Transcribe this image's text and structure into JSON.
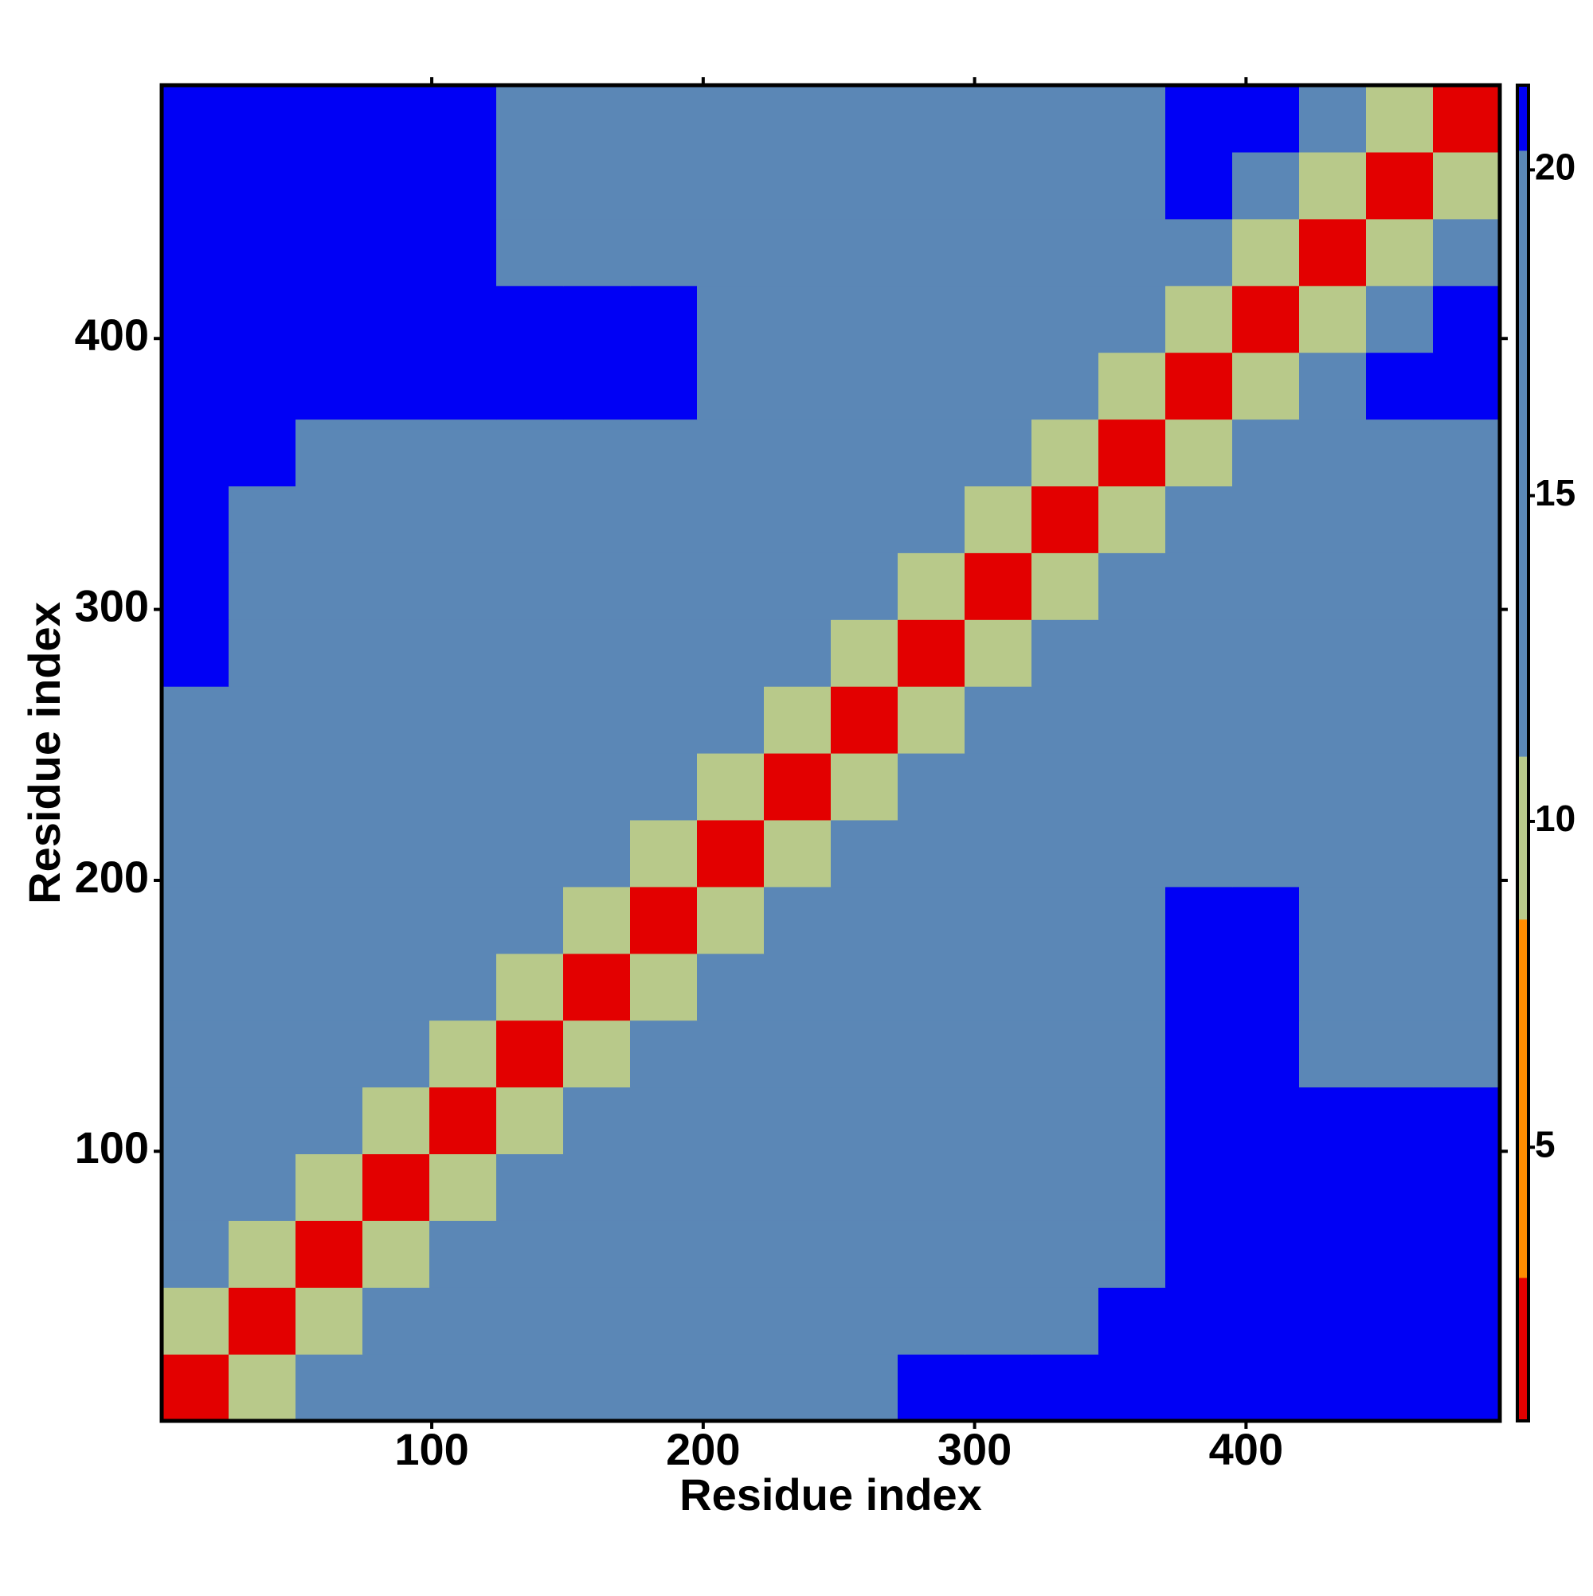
{
  "chart_data": {
    "type": "heatmap",
    "x_label": "Residue index",
    "y_label": "Residue index",
    "xlim": [
      0.5,
      493.5
    ],
    "ylim": [
      0.5,
      493.5
    ],
    "xticks": [
      100,
      200,
      300,
      400
    ],
    "yticks": [
      100,
      200,
      300,
      400
    ],
    "bins": [
      0.5,
      25.15,
      49.8,
      74.45,
      99.1,
      123.75,
      148.4,
      173.05,
      197.7,
      222.35,
      247,
      271.65,
      296.3,
      320.95,
      345.6,
      370.25,
      394.9,
      419.55,
      444.2,
      468.85,
      493.5
    ],
    "values": [
      [
        3,
        9,
        16,
        16,
        16,
        16,
        17,
        18,
        19,
        20,
        20,
        21,
        21,
        21,
        21,
        21,
        21,
        21,
        21,
        21
      ],
      [
        9,
        3,
        9,
        16,
        16,
        16,
        16,
        16,
        16,
        17,
        18,
        19,
        20,
        20,
        21,
        21,
        21,
        21,
        21,
        21
      ],
      [
        16,
        9,
        3,
        9,
        16,
        16,
        16,
        16,
        16,
        16,
        16,
        17,
        18,
        19,
        20,
        21,
        21,
        21,
        21,
        21
      ],
      [
        16,
        16,
        9,
        3,
        9,
        16,
        16,
        16,
        16,
        16,
        16,
        16,
        17,
        17,
        19,
        21,
        21,
        21,
        21,
        21
      ],
      [
        16,
        16,
        16,
        9,
        3,
        9,
        16,
        16,
        16,
        16,
        16,
        16,
        16,
        17,
        19,
        21,
        21,
        21,
        21,
        21
      ],
      [
        16,
        16,
        16,
        16,
        9,
        3,
        9,
        16,
        16,
        16,
        16,
        16,
        16,
        17,
        19,
        21,
        21,
        20,
        19,
        19
      ],
      [
        17,
        16,
        16,
        16,
        16,
        9,
        3,
        9,
        16,
        16,
        16,
        16,
        16,
        17,
        19,
        21,
        21,
        20,
        19,
        19
      ],
      [
        18,
        16,
        16,
        16,
        16,
        16,
        9,
        3,
        9,
        16,
        16,
        16,
        16,
        17,
        19,
        21,
        21,
        20,
        19,
        19
      ],
      [
        19,
        16,
        16,
        16,
        16,
        16,
        16,
        9,
        3,
        9,
        16,
        16,
        16,
        17,
        19,
        19,
        20,
        20,
        19,
        20
      ],
      [
        20,
        17,
        16,
        16,
        16,
        16,
        16,
        16,
        9,
        3,
        9,
        14,
        16,
        17,
        18,
        19,
        20,
        19,
        16,
        17
      ],
      [
        20,
        18,
        16,
        16,
        16,
        16,
        16,
        16,
        16,
        9,
        3,
        9,
        12,
        15,
        17,
        19,
        20,
        19,
        13,
        12
      ],
      [
        21,
        19,
        17,
        16,
        16,
        16,
        16,
        16,
        16,
        14,
        9,
        3,
        9,
        12,
        15,
        19,
        20,
        19,
        12,
        14
      ],
      [
        21,
        20,
        18,
        17,
        16,
        16,
        16,
        16,
        16,
        16,
        12,
        9,
        3,
        9,
        14,
        19,
        20,
        19,
        13,
        12
      ],
      [
        21,
        20,
        19,
        17,
        17,
        17,
        17,
        17,
        17,
        17,
        15,
        12,
        9,
        3,
        9,
        14,
        19,
        19,
        14,
        14
      ],
      [
        21,
        21,
        20,
        19,
        19,
        19,
        19,
        19,
        19,
        18,
        17,
        15,
        14,
        9,
        3,
        9,
        15,
        19,
        17,
        18
      ],
      [
        21,
        21,
        21,
        21,
        21,
        21,
        21,
        21,
        19,
        19,
        19,
        19,
        19,
        14,
        9,
        3,
        10,
        17,
        21,
        21
      ],
      [
        21,
        21,
        21,
        21,
        21,
        21,
        21,
        21,
        20,
        20,
        20,
        20,
        20,
        19,
        15,
        10,
        3,
        10,
        17,
        21
      ],
      [
        21,
        21,
        21,
        21,
        21,
        20,
        20,
        20,
        20,
        19,
        19,
        19,
        19,
        19,
        19,
        17,
        10,
        3,
        10,
        17
      ],
      [
        21,
        21,
        21,
        21,
        21,
        19,
        19,
        19,
        19,
        16,
        13,
        12,
        13,
        14,
        17,
        21,
        17,
        10,
        3,
        10
      ],
      [
        21,
        21,
        21,
        21,
        21,
        19,
        19,
        19,
        20,
        17,
        12,
        14,
        12,
        14,
        18,
        21,
        21,
        17,
        10,
        3
      ]
    ],
    "colorbar": {
      "lim": [
        0.8,
        21.3
      ],
      "ticks": [
        5,
        10,
        15,
        20
      ],
      "stops": [
        {
          "value": 3,
          "color": "#e30000"
        },
        {
          "value": 8.5,
          "color": "#ff8c00"
        },
        {
          "value": 11,
          "color": "#b8c98a"
        },
        {
          "value": 20.3,
          "color": "#5b87b6"
        },
        {
          "value": 21.3,
          "color": "#0000f5"
        }
      ]
    }
  }
}
